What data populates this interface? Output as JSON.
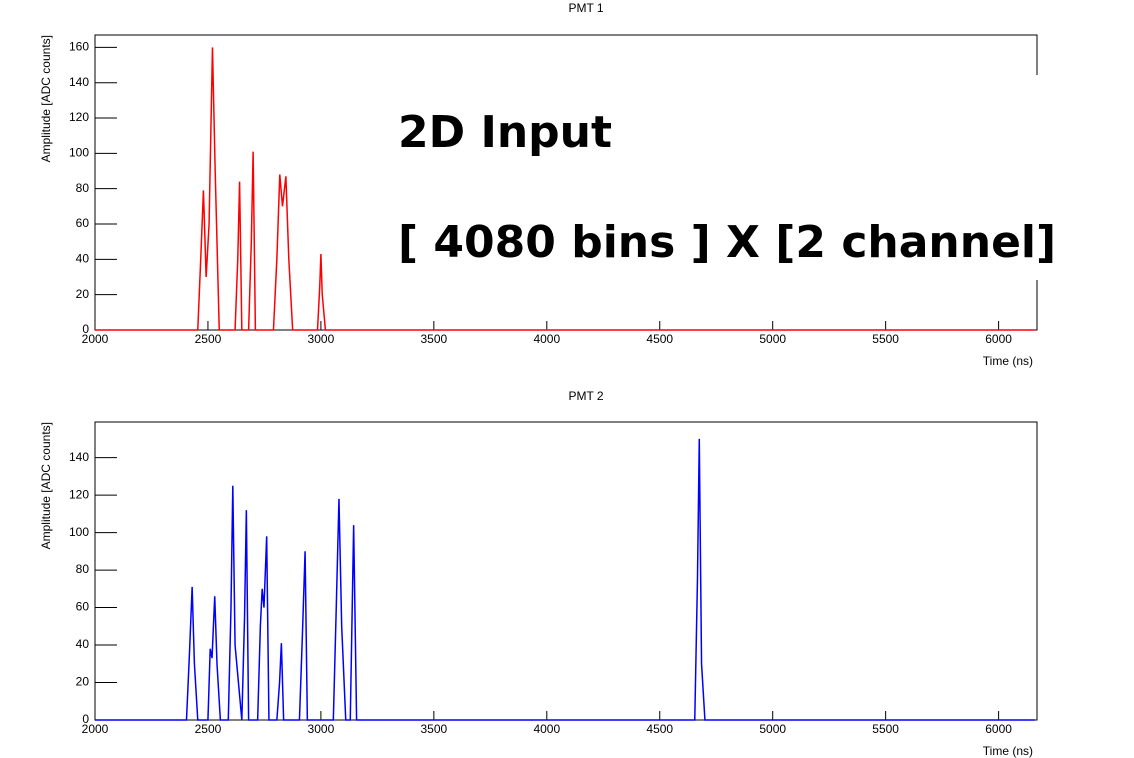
{
  "chart_data": [
    {
      "type": "line",
      "title": "PMT 1",
      "xlabel": "Time (ns)",
      "ylabel": "Amplitude [ADC counts]",
      "xlim": [
        2000,
        6170
      ],
      "xticks": [
        2000,
        2500,
        3000,
        3500,
        4000,
        4500,
        5000,
        5500,
        6000
      ],
      "ylim": [
        0,
        167
      ],
      "yticks": [
        0,
        20,
        40,
        60,
        80,
        100,
        120,
        140,
        160
      ],
      "series": [
        {
          "color": "#ff0000",
          "x": [
            2000,
            2455,
            2468,
            2480,
            2492,
            2505,
            2520,
            2532,
            2550,
            2620,
            2632,
            2640,
            2650,
            2680,
            2692,
            2700,
            2710,
            2790,
            2805,
            2818,
            2830,
            2845,
            2858,
            2875,
            2985,
            2995,
            3000,
            3006,
            3020,
            6160
          ],
          "values": [
            0,
            0,
            40,
            79,
            30,
            60,
            160,
            90,
            0,
            0,
            40,
            84,
            0,
            0,
            50,
            101,
            0,
            0,
            40,
            88,
            70,
            87,
            40,
            0,
            0,
            25,
            43,
            20,
            0,
            0
          ]
        }
      ]
    },
    {
      "type": "line",
      "title": "PMT 2",
      "xlabel": "Time (ns)",
      "ylabel": "Amplitude [ADC counts]",
      "xlim": [
        2000,
        6170
      ],
      "xticks": [
        2000,
        2500,
        3000,
        3500,
        4000,
        4500,
        5000,
        5500,
        6000
      ],
      "ylim": [
        0,
        159
      ],
      "yticks": [
        0,
        20,
        40,
        60,
        80,
        100,
        120,
        140
      ],
      "series": [
        {
          "color": "#0000ff",
          "x": [
            2000,
            2405,
            2418,
            2430,
            2440,
            2455,
            2500,
            2510,
            2518,
            2530,
            2540,
            2555,
            2590,
            2602,
            2610,
            2620,
            2650,
            2662,
            2670,
            2680,
            2720,
            2732,
            2740,
            2748,
            2760,
            2770,
            2805,
            2817,
            2825,
            2835,
            2905,
            2918,
            2930,
            2940,
            3055,
            3068,
            3080,
            3092,
            3110,
            3130,
            3145,
            3158,
            3180,
            4655,
            4667,
            4675,
            4685,
            4700,
            6160
          ],
          "values": [
            0,
            0,
            35,
            71,
            30,
            0,
            0,
            38,
            33,
            66,
            30,
            0,
            0,
            60,
            125,
            40,
            0,
            55,
            112,
            0,
            0,
            50,
            70,
            60,
            98,
            0,
            0,
            20,
            41,
            0,
            0,
            45,
            90,
            0,
            0,
            60,
            118,
            50,
            0,
            0,
            104,
            0,
            0,
            0,
            75,
            150,
            30,
            0,
            0
          ]
        }
      ]
    }
  ],
  "overlay": {
    "line1": "2D Input",
    "line2": "[ 4080 bins ] X [2 channel]"
  }
}
